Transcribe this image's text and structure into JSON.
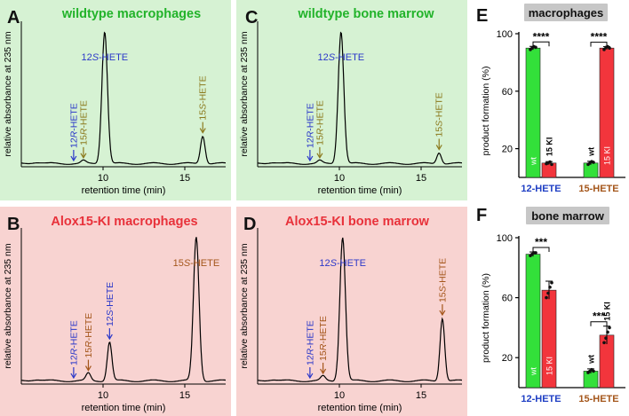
{
  "chart_data": [
    {
      "type": "line",
      "panel": "A",
      "title": "wildtype macrophages",
      "xlabel": "retention time (min)",
      "ylabel": "relative absorbance at 235 nm",
      "xlim": [
        5,
        17.5
      ],
      "xticks": [
        10,
        15
      ],
      "ylim": [
        0,
        1
      ],
      "background": "#d6f2d3",
      "title_color": "#22b32a",
      "peaks": [
        {
          "name": "12R-HETE",
          "label_parts": [
            "12",
            "R",
            "-HETE"
          ],
          "rt": 8.2,
          "height": 0.0,
          "color": "#2b38c9"
        },
        {
          "name": "15R-HETE",
          "label_parts": [
            "15",
            "R",
            "-HETE"
          ],
          "rt": 8.8,
          "height": 0.02,
          "color": "#8c7a1e"
        },
        {
          "name": "12S-HETE",
          "label_parts": [
            "12",
            "S",
            "-HETE"
          ],
          "rt": 10.1,
          "height": 0.95,
          "color": "#2b38c9"
        },
        {
          "name": "15S-HETE",
          "label_parts": [
            "15",
            "S",
            "-HETE"
          ],
          "rt": 16.1,
          "height": 0.2,
          "color": "#8c7a1e"
        }
      ]
    },
    {
      "type": "line",
      "panel": "C",
      "title": "wildtype bone marrow",
      "xlabel": "retention time (min)",
      "ylabel": "relative absorbance at 235 nm",
      "xlim": [
        5,
        17.5
      ],
      "xticks": [
        10,
        15
      ],
      "ylim": [
        0,
        1
      ],
      "background": "#d6f2d3",
      "title_color": "#22b32a",
      "peaks": [
        {
          "name": "12R-HETE",
          "label_parts": [
            "12",
            "R",
            "-HETE"
          ],
          "rt": 8.2,
          "height": 0.0,
          "color": "#2b38c9"
        },
        {
          "name": "15R-HETE",
          "label_parts": [
            "15",
            "R",
            "-HETE"
          ],
          "rt": 8.8,
          "height": 0.02,
          "color": "#8c7a1e"
        },
        {
          "name": "12S-HETE",
          "label_parts": [
            "12",
            "S",
            "-HETE"
          ],
          "rt": 10.1,
          "height": 0.95,
          "color": "#2b38c9"
        },
        {
          "name": "15S-HETE",
          "label_parts": [
            "15",
            "S",
            "-HETE"
          ],
          "rt": 16.1,
          "height": 0.08,
          "color": "#8c7a1e"
        }
      ]
    },
    {
      "type": "line",
      "panel": "B",
      "title": "Alox15-KI macrophages",
      "xlabel": "retention time (min)",
      "ylabel": "relative absorbance at 235 nm",
      "xlim": [
        5,
        17.5
      ],
      "xticks": [
        10,
        15
      ],
      "ylim": [
        0,
        1
      ],
      "background": "#f8d3d1",
      "title_color": "#e8313a",
      "peaks": [
        {
          "name": "12R-HETE",
          "label_parts": [
            "12",
            "R",
            "-HETE"
          ],
          "rt": 8.2,
          "height": 0.0,
          "color": "#2b38c9"
        },
        {
          "name": "15R-HETE",
          "label_parts": [
            "15",
            "R",
            "-HETE"
          ],
          "rt": 9.1,
          "height": 0.05,
          "color": "#a4561b"
        },
        {
          "name": "12S-HETE",
          "label_parts": [
            "12",
            "S",
            "-HETE"
          ],
          "rt": 10.4,
          "height": 0.26,
          "color": "#2b38c9"
        },
        {
          "name": "15S-HETE",
          "label_parts": [
            "15",
            "S",
            "-HETE"
          ],
          "rt": 15.7,
          "height": 0.96,
          "color": "#a4561b"
        }
      ]
    },
    {
      "type": "line",
      "panel": "D",
      "title": "Alox15-KI bone marrow",
      "xlabel": "retention time (min)",
      "ylabel": "relative absorbance at 235 nm",
      "xlim": [
        5,
        17.5
      ],
      "xticks": [
        10,
        15
      ],
      "ylim": [
        0,
        1
      ],
      "background": "#f8d3d1",
      "title_color": "#e8313a",
      "peaks": [
        {
          "name": "12R-HETE",
          "label_parts": [
            "12",
            "R",
            "-HETE"
          ],
          "rt": 8.2,
          "height": 0.0,
          "color": "#2b38c9"
        },
        {
          "name": "15R-HETE",
          "label_parts": [
            "15",
            "R",
            "-HETE"
          ],
          "rt": 9.0,
          "height": 0.03,
          "color": "#a4561b"
        },
        {
          "name": "12S-HETE",
          "label_parts": [
            "12",
            "S",
            "-HETE"
          ],
          "rt": 10.2,
          "height": 0.96,
          "color": "#2b38c9"
        },
        {
          "name": "15S-HETE",
          "label_parts": [
            "15",
            "S",
            "-HETE"
          ],
          "rt": 16.3,
          "height": 0.42,
          "color": "#a4561b"
        }
      ]
    },
    {
      "type": "bar",
      "panel": "E",
      "title": "macrophages",
      "ylabel": "product formation (%)",
      "ylim": [
        0,
        100
      ],
      "yticks": [
        20,
        60,
        100
      ],
      "categories": [
        "12-HETE",
        "15-HETE"
      ],
      "category_colors": [
        "#1f3fc4",
        "#a4561b"
      ],
      "series": [
        {
          "name": "wt",
          "color": "#33e03a",
          "values": [
            90,
            10
          ],
          "errors": [
            1.2,
            1.2
          ],
          "points": [
            [
              89,
              90,
              91,
              90.5
            ],
            [
              9,
              10,
              11,
              10.5
            ]
          ]
        },
        {
          "name": "15 KI",
          "color": "#f2353c",
          "values": [
            10,
            90
          ],
          "errors": [
            1.0,
            1.0
          ],
          "points": [
            [
              9.5,
              10,
              10.8,
              9
            ],
            [
              89,
              90.5,
              91,
              90
            ]
          ]
        }
      ],
      "significance": [
        "****",
        "****"
      ]
    },
    {
      "type": "bar",
      "panel": "F",
      "title": "bone marrow",
      "ylabel": "product formation (%)",
      "ylim": [
        0,
        100
      ],
      "yticks": [
        20,
        60,
        100
      ],
      "categories": [
        "12-HETE",
        "15-HETE"
      ],
      "category_colors": [
        "#1f3fc4",
        "#a4561b"
      ],
      "series": [
        {
          "name": "wt",
          "color": "#33e03a",
          "values": [
            89,
            11
          ],
          "errors": [
            1.5,
            1.5
          ],
          "points": [
            [
              88,
              89,
              90,
              90
            ],
            [
              10,
              11,
              12,
              11
            ]
          ]
        },
        {
          "name": "15 KI",
          "color": "#f2353c",
          "values": [
            65,
            35
          ],
          "errors": [
            6,
            6
          ],
          "points": [
            [
              60,
              63,
              67,
              70
            ],
            [
              30,
              33,
              37,
              40
            ]
          ]
        }
      ],
      "significance": [
        "***",
        "***"
      ]
    }
  ]
}
